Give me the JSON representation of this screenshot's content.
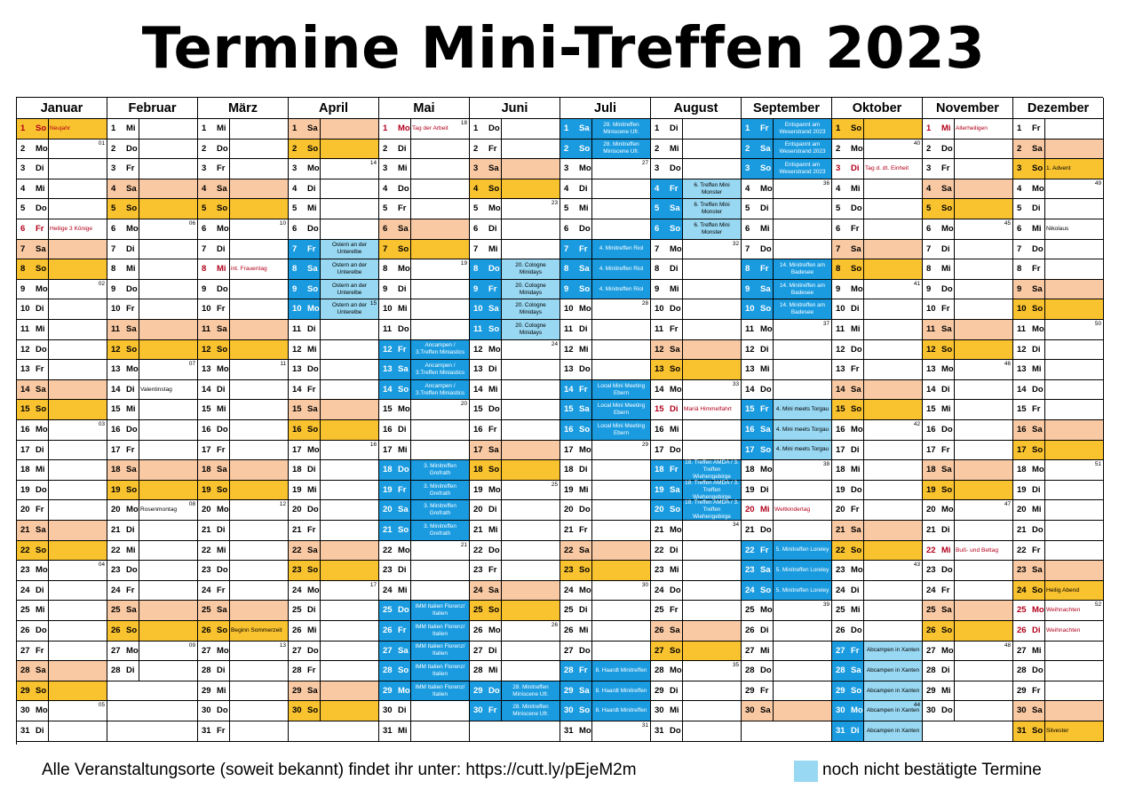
{
  "title": "Termine Mini-Treffen 2023",
  "footer": {
    "text": "Alle Veranstaltungsorte (soweit bekannt) findet ihr unter: https://cutt.ly/pEjeM2m",
    "legend": "noch nicht bestätigte Termine"
  },
  "colors": {
    "saturday": "#f9c9a4",
    "sunday": "#f9c22f",
    "confirmed_event": "#1a9be0",
    "unconfirmed_event": "#99d8f2",
    "holiday_text": "#b2001b"
  },
  "months": [
    {
      "name": "Januar",
      "first": 0,
      "days": 31,
      "week_numbers": {
        "2": "01",
        "9": "02",
        "16": "03",
        "23": "04",
        "30": "05"
      },
      "notes": {
        "1": "Neujahr",
        "6": "Heilige 3 Könige"
      },
      "holidays": [
        1,
        6
      ],
      "events": []
    },
    {
      "name": "Februar",
      "first": 3,
      "days": 28,
      "week_numbers": {
        "6": "06",
        "13": "07",
        "20": "08",
        "27": "09"
      },
      "notes": {
        "14": "Valentinstag",
        "20": "Rosenmontag"
      },
      "holidays": [],
      "events": []
    },
    {
      "name": "März",
      "first": 3,
      "days": 31,
      "week_numbers": {
        "6": "10",
        "13": "11",
        "20": "12",
        "27": "13"
      },
      "notes": {
        "8": "int. Frauentag",
        "26": "Beginn Sommerzeit"
      },
      "holidays": [
        8
      ],
      "events": []
    },
    {
      "name": "April",
      "first": 6,
      "days": 30,
      "week_numbers": {
        "3": "14",
        "10": "15",
        "17": "16",
        "24": "17"
      },
      "notes": {},
      "holidays": [],
      "events": [
        {
          "start": 7,
          "end": 10,
          "label": "Ostern an der Unterelbe",
          "status": "unconfirmed"
        }
      ]
    },
    {
      "name": "Mai",
      "first": 1,
      "days": 31,
      "week_numbers": {
        "1": "18",
        "8": "19",
        "15": "20",
        "22": "21"
      },
      "notes": {
        "1": "Tag der Arbeit"
      },
      "holidays": [
        1
      ],
      "events": [
        {
          "start": 12,
          "end": 14,
          "label": "Ancampen / 3.Treffen Miniastics",
          "status": "confirmed"
        },
        {
          "start": 18,
          "end": 21,
          "label": "3. Minitreffen Grefrath",
          "status": "confirmed"
        },
        {
          "start": 25,
          "end": 29,
          "label": "IMM Italien Florenz/ Italien",
          "status": "confirmed"
        }
      ]
    },
    {
      "name": "Juni",
      "first": 4,
      "days": 30,
      "week_numbers": {
        "5": "23",
        "12": "24",
        "19": "25",
        "26": "26"
      },
      "notes": {},
      "holidays": [],
      "events": [
        {
          "start": 8,
          "end": 11,
          "label": "20. Cologne Minidays",
          "status": "unconfirmed"
        },
        {
          "start": 29,
          "end": 30,
          "label": "28. Minitreffen Miniscene Ufr.",
          "status": "confirmed"
        }
      ]
    },
    {
      "name": "Juli",
      "first": 6,
      "days": 31,
      "week_numbers": {
        "3": "27",
        "10": "28",
        "17": "29",
        "24": "30",
        "31": "31"
      },
      "notes": {},
      "holidays": [],
      "events": [
        {
          "start": 1,
          "end": 2,
          "label": "28. Minitreffen Miniscene Ufr.",
          "status": "confirmed"
        },
        {
          "start": 7,
          "end": 9,
          "label": "4. Minitreffen Riol",
          "status": "confirmed"
        },
        {
          "start": 14,
          "end": 16,
          "label": "Local Mini Meeting Ebern",
          "status": "confirmed"
        },
        {
          "start": 28,
          "end": 30,
          "label": "8. Haardt Minitreffen",
          "status": "confirmed"
        }
      ]
    },
    {
      "name": "August",
      "first": 2,
      "days": 31,
      "week_numbers": {
        "7": "32",
        "14": "33",
        "21": "34",
        "28": "35"
      },
      "notes": {
        "15": "Mariä Himmelfahrt"
      },
      "holidays": [
        15
      ],
      "events": [
        {
          "start": 4,
          "end": 6,
          "label": "6. Treffen Mini Monster",
          "status": "unconfirmed"
        },
        {
          "start": 18,
          "end": 20,
          "label": "18. Treffen AMDA / 3. Treffen Wiehengebirge",
          "status": "confirmed"
        }
      ]
    },
    {
      "name": "September",
      "first": 5,
      "days": 30,
      "week_numbers": {
        "4": "36",
        "11": "37",
        "18": "38",
        "25": "39"
      },
      "notes": {
        "20": "Weltkindertag"
      },
      "holidays": [
        20
      ],
      "events": [
        {
          "start": 1,
          "end": 3,
          "label": "Entspannt am Weserstrand 2023",
          "status": "confirmed"
        },
        {
          "start": 8,
          "end": 10,
          "label": "14. Minitreffen am Badesee",
          "status": "confirmed"
        },
        {
          "start": 15,
          "end": 17,
          "label": "4. Mini meets Torgau",
          "status": "unconfirmed"
        },
        {
          "start": 22,
          "end": 24,
          "label": "5. Minitreffen Loreley",
          "status": "confirmed"
        }
      ]
    },
    {
      "name": "Oktober",
      "first": 0,
      "days": 31,
      "week_numbers": {
        "2": "40",
        "9": "41",
        "16": "42",
        "23": "43",
        "30": "44"
      },
      "notes": {
        "3": "Tag d. dt. Einheit"
      },
      "holidays": [
        3
      ],
      "events": [
        {
          "start": 27,
          "end": 31,
          "label": "Abcampen in Xanten",
          "status": "unconfirmed"
        }
      ]
    },
    {
      "name": "November",
      "first": 3,
      "days": 30,
      "week_numbers": {
        "6": "45",
        "13": "46",
        "20": "47",
        "27": "48"
      },
      "notes": {
        "1": "Allerheiligen",
        "22": "Buß- und Bettag"
      },
      "holidays": [
        1,
        22
      ],
      "events": []
    },
    {
      "name": "Dezember",
      "first": 5,
      "days": 31,
      "week_numbers": {
        "4": "49",
        "11": "50",
        "18": "51",
        "25": "52"
      },
      "notes": {
        "3": "1. Advent",
        "6": "Nikolaus",
        "24": "Heilig Abend",
        "25": "Weihnachten",
        "26": "Weihnachten",
        "31": "Silvester"
      },
      "holidays": [
        25,
        26
      ],
      "events": []
    }
  ],
  "weekday_names": [
    "So",
    "Mo",
    "Di",
    "Mi",
    "Do",
    "Fr",
    "Sa"
  ]
}
